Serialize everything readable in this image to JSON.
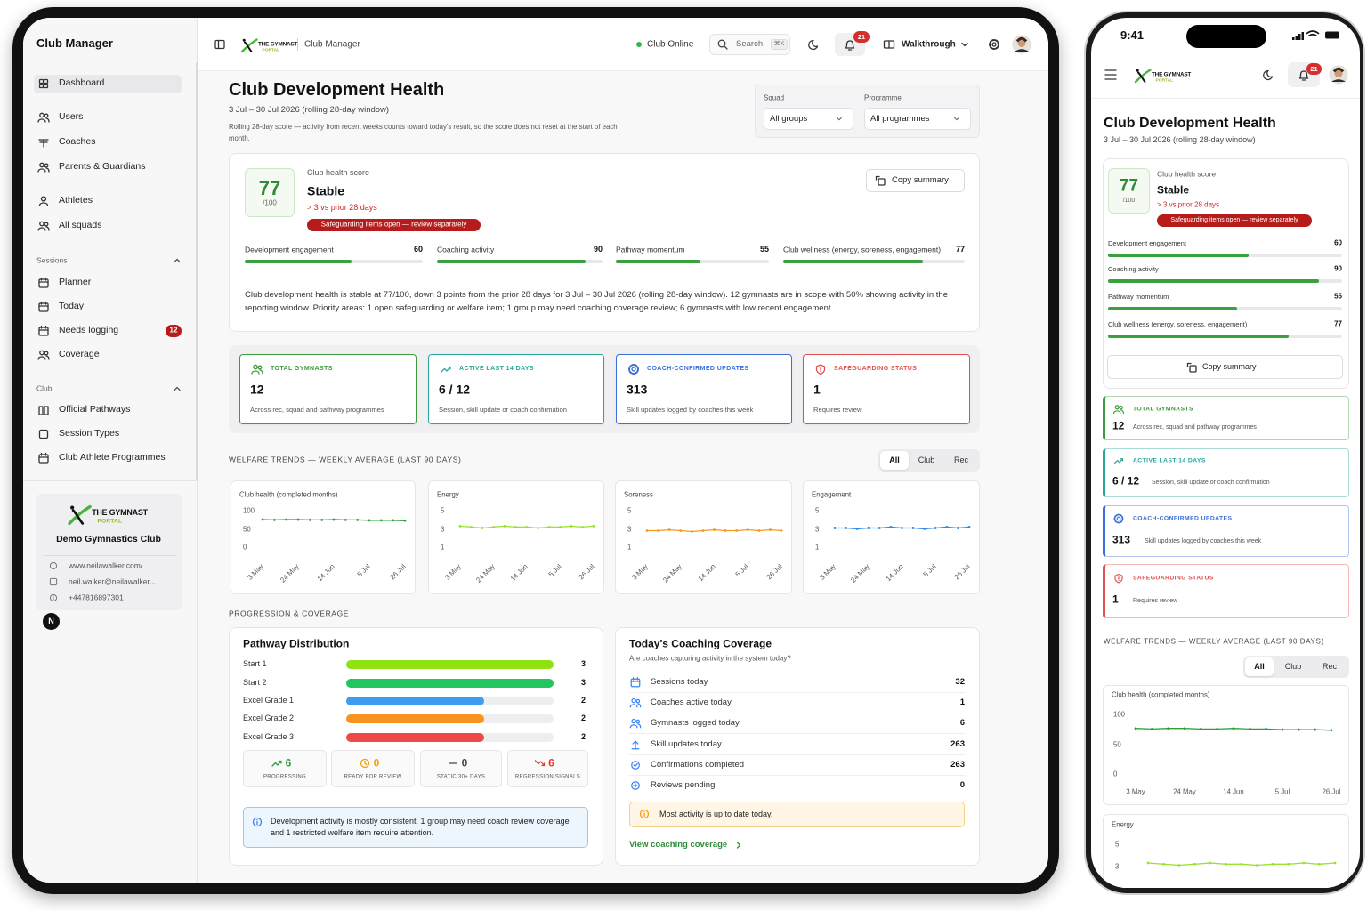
{
  "sidebar": {
    "title": "Club Manager",
    "nav": [
      "Dashboard",
      "Users",
      "Coaches",
      "Parents & Guardians",
      "Athletes",
      "All squads"
    ],
    "sessions_heading": "Sessions",
    "sessions": [
      "Planner",
      "Today",
      "Needs logging",
      "Coverage"
    ],
    "needs_logging_badge": 12,
    "club_heading": "Club",
    "club": [
      "Official Pathways",
      "Session Types",
      "Club Athlete Programmes"
    ],
    "club_card": {
      "logo_line1": "THE GYMNAST",
      "logo_line2": "PORTAL",
      "name": "Demo Gymnastics Club",
      "website": "www.neilawalker.com/",
      "email": "neil.walker@neilawalker...",
      "phone": "+447816897301"
    },
    "avatar": "N"
  },
  "topbar": {
    "breadcrumb": "Club Manager",
    "status": "Club Online",
    "search": "Search",
    "shortcut": "⌘K",
    "notifications": 21,
    "walkthrough": "Walkthrough"
  },
  "page": {
    "title": "Club Development Health",
    "period": "3 Jul – 30 Jul 2026 (rolling 28-day window)",
    "note": "Rolling 28-day score — activity from recent weeks counts toward today's result, so the score does not reset at the start of each month.",
    "filters": [
      {
        "label": "Squad",
        "value": "All groups"
      },
      {
        "label": "Programme",
        "value": "All programmes"
      }
    ]
  },
  "health": {
    "label": "Club health score",
    "score": 77,
    "out_of": {
      "value": 100,
      "label": "/100"
    },
    "status": "Stable",
    "change": "> 3 vs prior 28 days",
    "alert": "Safeguarding items open — review separately",
    "copy": "Copy summary",
    "metrics": [
      {
        "name": "Development engagement",
        "value": 60
      },
      {
        "name": "Coaching activity",
        "value": 90
      },
      {
        "name": "Pathway momentum",
        "value": 55
      },
      {
        "name": "Club wellness (energy, soreness, engagement)",
        "value": 77
      }
    ],
    "summary": "Club development health is stable at 77/100, down 3 points from the prior 28 days for 3 Jul – 30 Jul 2026 (rolling 28-day window). 12 gymnasts are in scope with 50% showing activity in the reporting window. Priority areas: 1 open safeguarding or welfare item; 1 group may need coaching coverage review; 6 gymnasts with low recent engagement."
  },
  "kpis": [
    {
      "title": "TOTAL GYMNASTS",
      "value": 12,
      "desc": "Across rec, squad and pathway programmes",
      "color": "#3f9b3f"
    },
    {
      "title": "ACTIVE LAST 14 DAYS",
      "value": "6 / 12",
      "desc": "Session, skill update or coach confirmation",
      "color": "#2aa79b"
    },
    {
      "title": "COACH-CONFIRMED UPDATES",
      "value": 313,
      "desc": "Skill updates logged by coaches this week",
      "color": "#3b6fd8"
    },
    {
      "title": "SAFEGUARDING STATUS",
      "value": 1,
      "desc": "Requires review",
      "color": "#e05252"
    }
  ],
  "welfare": {
    "heading": "WELFARE TRENDS — WEEKLY AVERAGE (LAST 90 DAYS)",
    "tabs": [
      "All",
      "Club",
      "Rec"
    ],
    "charts": [
      {
        "type": "line",
        "title": "Club health (completed months)",
        "color": "#2e9e3a",
        "categories": [
          "3 May",
          null,
          null,
          "24 May",
          null,
          null,
          "14 Jun",
          null,
          null,
          "5 Jul",
          null,
          null,
          "26 Jul"
        ],
        "values": [
          78,
          77,
          78,
          78,
          77,
          77,
          78,
          77,
          77,
          76,
          76,
          76,
          75
        ],
        "ylim": [
          0,
          100
        ],
        "yticks": [
          0,
          50,
          100
        ]
      },
      {
        "type": "line",
        "title": "Energy",
        "color": "#9be22e",
        "categories": [
          "3 May",
          null,
          null,
          "24 May",
          null,
          null,
          "14 Jun",
          null,
          null,
          "5 Jul",
          null,
          null,
          "26 Jul"
        ],
        "values": [
          3.4,
          3.3,
          3.2,
          3.3,
          3.4,
          3.3,
          3.3,
          3.2,
          3.3,
          3.3,
          3.4,
          3.3,
          3.4
        ],
        "ylim": [
          1,
          5
        ],
        "yticks": [
          1,
          3,
          5
        ]
      },
      {
        "type": "line",
        "title": "Soreness",
        "color": "#f59a1f",
        "categories": [
          "3 May",
          null,
          null,
          "24 May",
          null,
          null,
          "14 Jun",
          null,
          null,
          "5 Jul",
          null,
          null,
          "26 Jul"
        ],
        "values": [
          2.9,
          2.9,
          3.0,
          2.9,
          2.8,
          2.9,
          3.0,
          2.9,
          2.9,
          3.0,
          2.9,
          3.0,
          2.9
        ],
        "ylim": [
          1,
          5
        ],
        "yticks": [
          1,
          3,
          5
        ]
      },
      {
        "type": "line",
        "title": "Engagement",
        "color": "#2f8be0",
        "categories": [
          "3 May",
          null,
          null,
          "24 May",
          null,
          null,
          "14 Jun",
          null,
          null,
          "5 Jul",
          null,
          null,
          "26 Jul"
        ],
        "values": [
          3.2,
          3.2,
          3.1,
          3.2,
          3.2,
          3.3,
          3.2,
          3.2,
          3.1,
          3.2,
          3.3,
          3.2,
          3.3
        ],
        "ylim": [
          1,
          5
        ],
        "yticks": [
          1,
          3,
          5
        ]
      }
    ]
  },
  "progression": {
    "heading": "PROGRESSION & COVERAGE",
    "pathway": {
      "title": "Pathway Distribution",
      "rows": [
        {
          "name": "Start 1",
          "value": 3,
          "color": "#8fe312"
        },
        {
          "name": "Start 2",
          "value": 3,
          "color": "#22c55e"
        },
        {
          "name": "Excel Grade 1",
          "value": 2,
          "color": "#3b9cf0"
        },
        {
          "name": "Excel Grade 2",
          "value": 2,
          "color": "#f7941d"
        },
        {
          "name": "Excel Grade 3",
          "value": 2,
          "color": "#f04848"
        }
      ],
      "stats": [
        {
          "value": 6,
          "label": "PROGRESSING",
          "color": "#2a9d3a"
        },
        {
          "value": 0,
          "label": "READY FOR REVIEW",
          "color": "#f59e0b"
        },
        {
          "value": 0,
          "label": "STATIC 30+ DAYS",
          "color": "#444444"
        },
        {
          "value": 6,
          "label": "REGRESSION SIGNALS",
          "color": "#e53935"
        }
      ],
      "note": "Development activity is mostly consistent. 1 group may need coach review coverage and 1 restricted welfare item require attention."
    },
    "coverage": {
      "title": "Today's Coaching Coverage",
      "subtitle": "Are coaches capturing activity in the system today?",
      "rows": [
        {
          "name": "Sessions today",
          "value": 32
        },
        {
          "name": "Coaches active today",
          "value": 1
        },
        {
          "name": "Gymnasts logged today",
          "value": 6
        },
        {
          "name": "Skill updates today",
          "value": 263
        },
        {
          "name": "Confirmations completed",
          "value": 263
        },
        {
          "name": "Reviews pending",
          "value": 0
        }
      ],
      "status": "Most activity is up to date today.",
      "link": "View coaching coverage"
    }
  },
  "phone": {
    "time": "9:41"
  }
}
